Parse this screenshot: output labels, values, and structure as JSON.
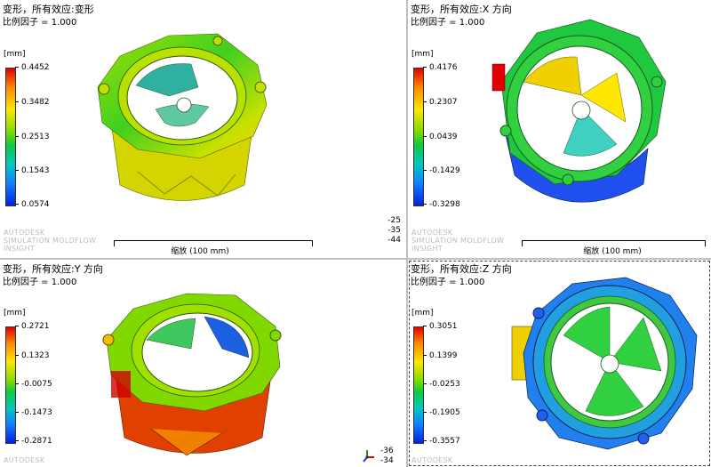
{
  "panes": [
    {
      "id": "tl",
      "title": "变形，所有效应:变形",
      "scale_factor": "比例因子 = 1.000",
      "unit": "[mm]",
      "legend": [
        "0.4452",
        "0.3482",
        "0.2513",
        "0.1543",
        "0.0574"
      ],
      "watermark": [
        "AUTODESK",
        "SIMULATION MOLDFLOW",
        "INSIGHT"
      ],
      "scale_label": "缩放 (100 mm)",
      "coords": [
        "-25",
        "-35",
        "-44"
      ]
    },
    {
      "id": "tr",
      "title": "变形，所有效应:X 方向",
      "scale_factor": "比例因子 = 1.000",
      "unit": "[mm]",
      "legend": [
        "0.4176",
        "0.2307",
        "0.0439",
        "-0.1429",
        "-0.3298"
      ],
      "watermark": [
        "AUTODESK",
        "SIMULATION MOLDFLOW",
        "INSIGHT"
      ],
      "scale_label": "缩放 (100 mm)"
    },
    {
      "id": "bl",
      "title": "变形，所有效应:Y 方向",
      "scale_factor": "比例因子 = 1.000",
      "unit": "[mm]",
      "legend": [
        "0.2721",
        "0.1323",
        "-0.0075",
        "-0.1473",
        "-0.2871"
      ],
      "watermark": [
        "AUTODESK"
      ],
      "coords": [
        "-36",
        "-34"
      ]
    },
    {
      "id": "br",
      "title": "变形，所有效应:Z 方向",
      "scale_factor": "比例因子 = 1.000",
      "unit": "[mm]",
      "legend": [
        "0.3051",
        "0.1399",
        "-0.0253",
        "-0.1905",
        "-0.3557"
      ],
      "watermark": [
        "AUTODESK"
      ]
    }
  ],
  "colors": {
    "background": "#c0c0c0",
    "pane": "#ffffff",
    "scale_high": "#e00000",
    "scale_mid": "#10c840",
    "scale_low": "#0020e0"
  },
  "icons": [
    "color-scale-bar",
    "axis-triad-icon",
    "molded-part-model"
  ]
}
